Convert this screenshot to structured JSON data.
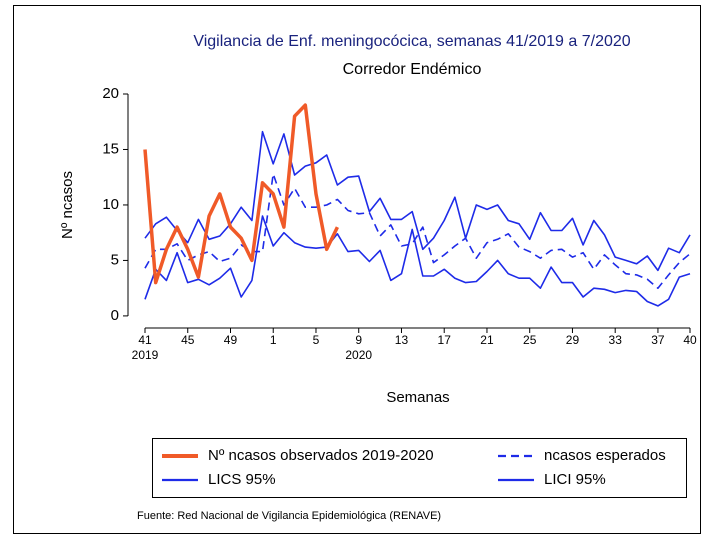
{
  "chart_data": {
    "type": "line",
    "title": "Vigilancia de Enf. meningocócica, semanas 41/2019 a 7/2020",
    "subtitle": "Corredor Endémico",
    "x_label": "Semanas",
    "y_label": "Nº ncasos",
    "source": "Fuente: Red Nacional de Vigilancia Epidemiológica (RENAVE)",
    "categories": [
      "41",
      null,
      null,
      null,
      "45",
      null,
      null,
      null,
      "49",
      null,
      null,
      null,
      "1",
      null,
      null,
      null,
      "5",
      null,
      null,
      null,
      "9",
      null,
      null,
      null,
      "13",
      null,
      null,
      null,
      "17",
      null,
      null,
      null,
      "21",
      null,
      null,
      null,
      "25",
      null,
      null,
      null,
      "29",
      null,
      null,
      null,
      "33",
      null,
      null,
      null,
      "37",
      null,
      null,
      "40"
    ],
    "x_groups": [
      {
        "label": "2019",
        "at": "41"
      },
      {
        "label": "2020",
        "at": "9"
      }
    ],
    "ylim": [
      -1,
      20
    ],
    "yticks": [
      0,
      5,
      10,
      15,
      20
    ],
    "legend_columns": 2,
    "series": [
      {
        "name": "Nº ncasos observados 2019-2020",
        "color": "#f05a28",
        "width": 3.5,
        "dash": false,
        "values": [
          15,
          3,
          6,
          8,
          6,
          3.5,
          9,
          11,
          8,
          7,
          5,
          12,
          11,
          8,
          18,
          19,
          11,
          6,
          8,
          null,
          null,
          null,
          null,
          null,
          null,
          null,
          null,
          null,
          null,
          null,
          null,
          null,
          null,
          null,
          null,
          null,
          null,
          null,
          null,
          null,
          null,
          null,
          null,
          null,
          null,
          null,
          null,
          null,
          null,
          null,
          null,
          null
        ]
      },
      {
        "name": "ncasos esperados",
        "color": "#1e2be8",
        "width": 1.6,
        "dash": true,
        "values": [
          4.3,
          6,
          6,
          6.5,
          5,
          5.5,
          5.8,
          4.9,
          5.2,
          6.4,
          5.8,
          5.8,
          12.8,
          10,
          11.5,
          9.8,
          9.8,
          10,
          10.5,
          9.5,
          9.2,
          9.3,
          7.2,
          8.2,
          6.3,
          6.5,
          8,
          4.8,
          5.5,
          6.3,
          7,
          5.2,
          6.6,
          6.9,
          7.4,
          6.2,
          5.8,
          5.2,
          5.9,
          6,
          5.3,
          5.7,
          4.2,
          5.5,
          4.6,
          3.8,
          3.7,
          3.3,
          2.5,
          3.7,
          4.8,
          5.6
        ]
      },
      {
        "name": "LICS 95%",
        "color": "#1e2be8",
        "width": 1.6,
        "dash": false,
        "values": [
          7,
          8.3,
          8.9,
          7.7,
          6.6,
          8.7,
          6.9,
          7.2,
          8.3,
          9.8,
          8.6,
          16.6,
          13.7,
          16.4,
          12.7,
          13.5,
          13.8,
          14.5,
          11.8,
          12.5,
          12.6,
          9.4,
          10.6,
          8.7,
          8.7,
          9.4,
          6,
          7,
          8.6,
          10.7,
          7,
          10,
          9.6,
          10,
          8.6,
          8.3,
          6.9,
          9.3,
          7.7,
          7.7,
          8.8,
          6.4,
          8.6,
          7.3,
          5.3,
          5,
          4.7,
          5.4,
          4.1,
          6.1,
          5.7,
          7.3
        ]
      },
      {
        "name": "LICI 95%",
        "color": "#1e2be8",
        "width": 1.6,
        "dash": false,
        "values": [
          1.5,
          4.2,
          3.2,
          5.7,
          3,
          3.3,
          2.8,
          3.4,
          4.3,
          1.7,
          3.2,
          9,
          6.3,
          7.5,
          6.6,
          6.2,
          6.1,
          6.2,
          7.4,
          5.8,
          5.9,
          4.9,
          5.9,
          3.2,
          3.8,
          7.8,
          3.6,
          3.6,
          4.2,
          3.4,
          3,
          3.1,
          4,
          5,
          3.8,
          3.4,
          3.4,
          2.5,
          4.4,
          3,
          3,
          1.7,
          2.5,
          2.4,
          2.1,
          2.3,
          2.2,
          1.3,
          0.9,
          1.5,
          3.5,
          3.8
        ]
      }
    ]
  }
}
